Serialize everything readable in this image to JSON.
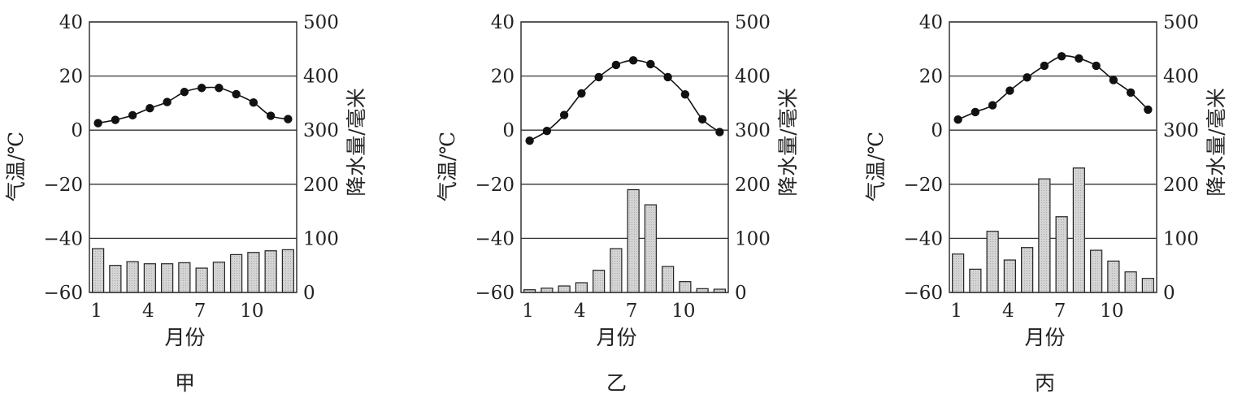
{
  "chart_data": [
    {
      "type": "bar+line",
      "caption": "甲",
      "xlabel": "月份",
      "ylabel_left": "气温/℃",
      "ylabel_right": "降水量/毫米",
      "ylim_left": [
        -60,
        40
      ],
      "ylim_right": [
        0,
        500
      ],
      "yticks_left": [
        "40",
        "20",
        "0",
        "−20",
        "−40",
        "−60"
      ],
      "yticks_right": [
        "500",
        "400",
        "300",
        "200",
        "100",
        "0"
      ],
      "xticks": [
        "1",
        "4",
        "7",
        "10"
      ],
      "months": [
        1,
        2,
        3,
        4,
        5,
        6,
        7,
        8,
        9,
        10,
        11,
        12
      ],
      "temperature": [
        2.6,
        3.8,
        5.5,
        8.1,
        10.4,
        14.1,
        15.6,
        15.6,
        13.3,
        10.2,
        5.3,
        4.1
      ],
      "precipitation": [
        81,
        50,
        57,
        53,
        53,
        55,
        45,
        56,
        70,
        74,
        77,
        79
      ]
    },
    {
      "type": "bar+line",
      "caption": "乙",
      "xlabel": "月份",
      "ylabel_left": "气温/℃",
      "ylabel_right": "降水量/毫米",
      "ylim_left": [
        -60,
        40
      ],
      "ylim_right": [
        0,
        500
      ],
      "yticks_left": [
        "40",
        "20",
        "0",
        "−20",
        "−40",
        "−60"
      ],
      "yticks_right": [
        "500",
        "400",
        "300",
        "200",
        "100",
        "0"
      ],
      "xticks": [
        "1",
        "4",
        "7",
        "10"
      ],
      "months": [
        1,
        2,
        3,
        4,
        5,
        6,
        7,
        8,
        9,
        10,
        11,
        12
      ],
      "temperature": [
        -3.9,
        -0.3,
        5.6,
        13.6,
        19.6,
        24.1,
        25.8,
        24.4,
        19.6,
        13.2,
        4.0,
        -0.7
      ],
      "precipitation": [
        5,
        8,
        12,
        18,
        41,
        81,
        190,
        162,
        48,
        20,
        7,
        6
      ]
    },
    {
      "type": "bar+line",
      "caption": "丙",
      "xlabel": "月份",
      "ylabel_left": "气温/℃",
      "ylabel_right": "降水量/毫米",
      "ylim_left": [
        -60,
        40
      ],
      "ylim_right": [
        0,
        500
      ],
      "yticks_left": [
        "40",
        "20",
        "0",
        "−20",
        "−40",
        "−60"
      ],
      "yticks_right": [
        "500",
        "400",
        "300",
        "200",
        "100",
        "0"
      ],
      "xticks": [
        "1",
        "4",
        "7",
        "10"
      ],
      "months": [
        1,
        2,
        3,
        4,
        5,
        6,
        7,
        8,
        9,
        10,
        11,
        12
      ],
      "temperature": [
        3.9,
        6.7,
        9.2,
        14.6,
        19.5,
        23.8,
        27.3,
        26.5,
        23.8,
        18.5,
        13.9,
        7.6
      ],
      "precipitation": [
        71,
        43,
        113,
        60,
        83,
        210,
        140,
        230,
        78,
        58,
        38,
        26
      ]
    }
  ]
}
